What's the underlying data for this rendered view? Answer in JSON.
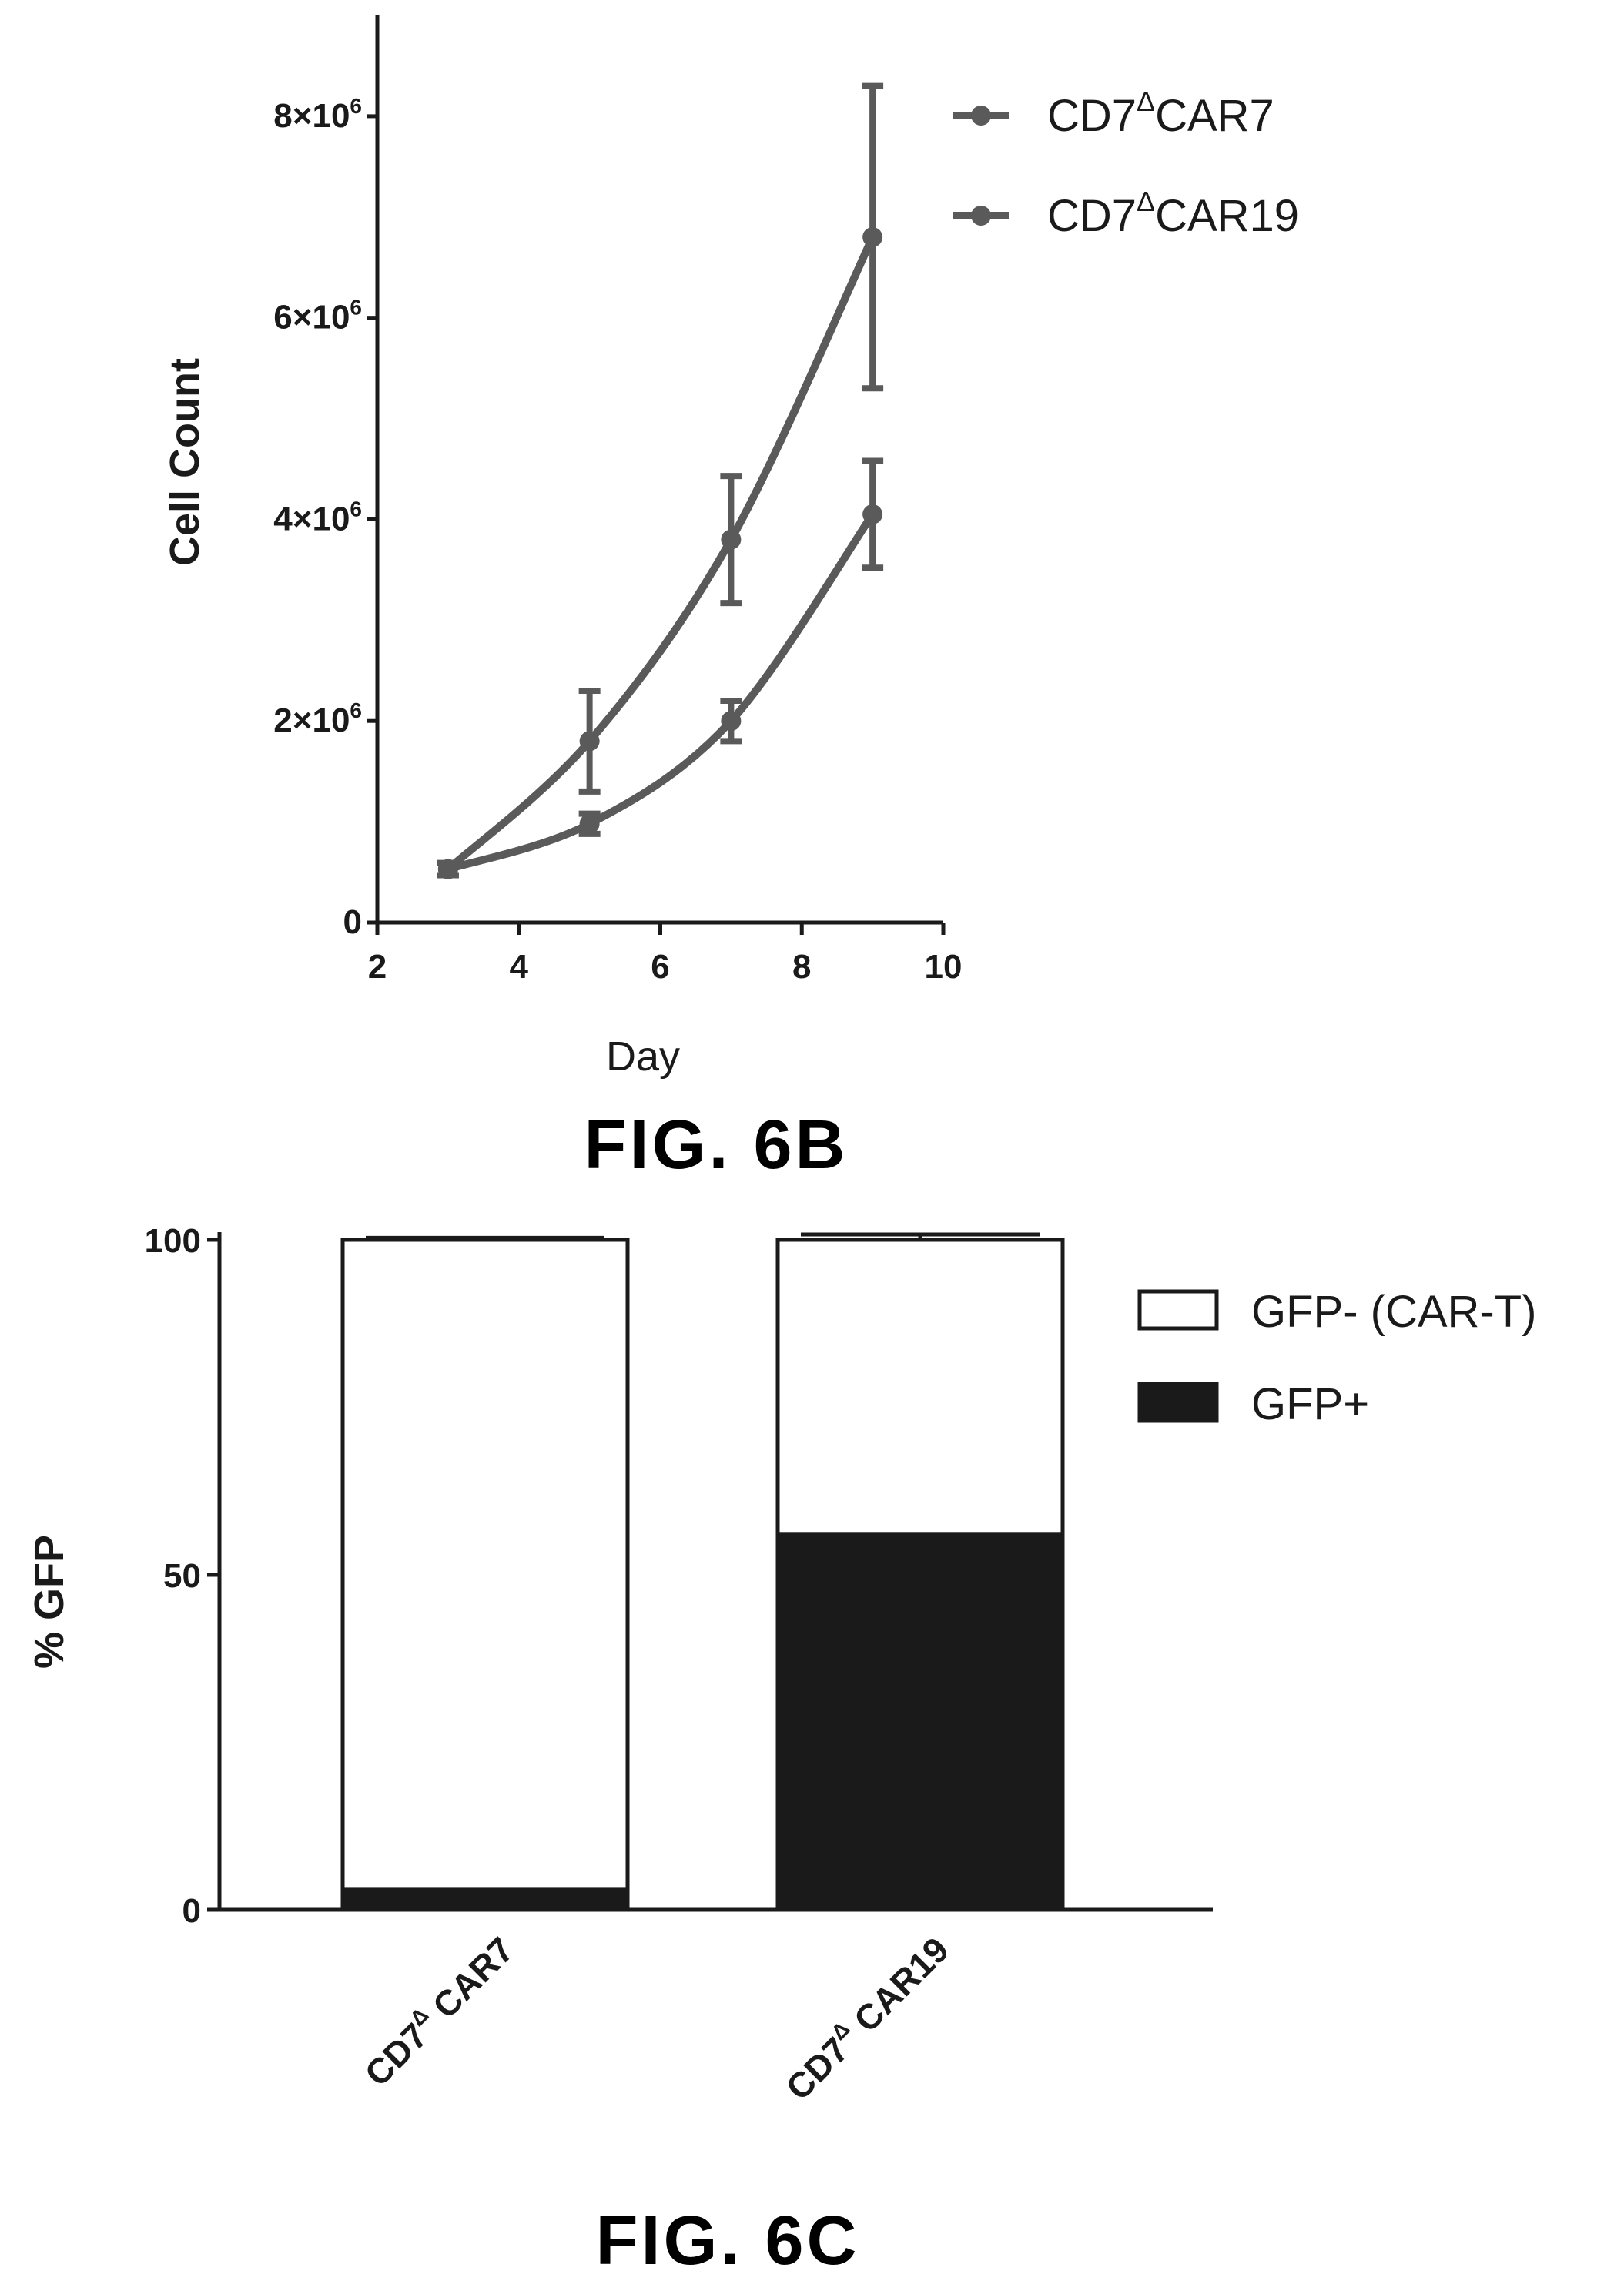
{
  "figure_6b": {
    "caption": "FIG. 6B",
    "chart_data": {
      "type": "line",
      "xlabel": "Day",
      "ylabel": "Cell Count",
      "xlim": [
        2,
        10
      ],
      "ylim": [
        0,
        9000000
      ],
      "x_ticks": [
        2,
        4,
        6,
        8,
        10
      ],
      "y_ticks": [
        {
          "value": 0,
          "label": "0"
        },
        {
          "value": 2000000,
          "mant": "2",
          "times": "×",
          "base": "10",
          "exp": "6"
        },
        {
          "value": 4000000,
          "mant": "4",
          "times": "×",
          "base": "10",
          "exp": "6"
        },
        {
          "value": 6000000,
          "mant": "6",
          "times": "×",
          "base": "10",
          "exp": "6"
        },
        {
          "value": 8000000,
          "mant": "8",
          "times": "×",
          "base": "10",
          "exp": "6"
        }
      ],
      "legend_position": "top-right",
      "series": [
        {
          "name_prefix": "CD7",
          "name_sup": "Δ",
          "name_suffix": "CAR7",
          "color": "#5a5a5a",
          "x": [
            3,
            5,
            7,
            9
          ],
          "y": [
            530000,
            980000,
            2000000,
            4050000
          ],
          "error": [
            60000,
            100000,
            200000,
            530000
          ]
        },
        {
          "name_prefix": "CD7",
          "name_sup": "Δ",
          "name_suffix": "CAR19",
          "color": "#5a5a5a",
          "x": [
            3,
            5,
            7,
            9
          ],
          "y": [
            530000,
            1800000,
            3800000,
            6800000
          ],
          "error": [
            60000,
            500000,
            630000,
            1500000
          ]
        }
      ]
    }
  },
  "figure_6c": {
    "caption": "FIG. 6C",
    "chart_data": {
      "type": "bar",
      "stacked": true,
      "ylabel": "% GFP",
      "ylim": [
        0,
        100
      ],
      "y_ticks": [
        0,
        50,
        100
      ],
      "legend_position": "top-right",
      "categories": [
        {
          "prefix": "CD7",
          "sup": "Δ",
          "suffix": " CAR7",
          "display_prefix": "CD7"
        },
        {
          "prefix": "CD7",
          "sup": "Δ",
          "suffix": " CAR19",
          "display_prefix": "CD7"
        }
      ],
      "series": [
        {
          "name": "GFP+",
          "color": "#1a1a1a",
          "values": [
            3,
            56
          ],
          "error": [
            0.5,
            1
          ]
        },
        {
          "name": "GFP- (CAR-T)",
          "color": "#ffffff",
          "values": [
            97,
            44
          ],
          "error": [
            0.3,
            0.8
          ]
        }
      ]
    }
  }
}
